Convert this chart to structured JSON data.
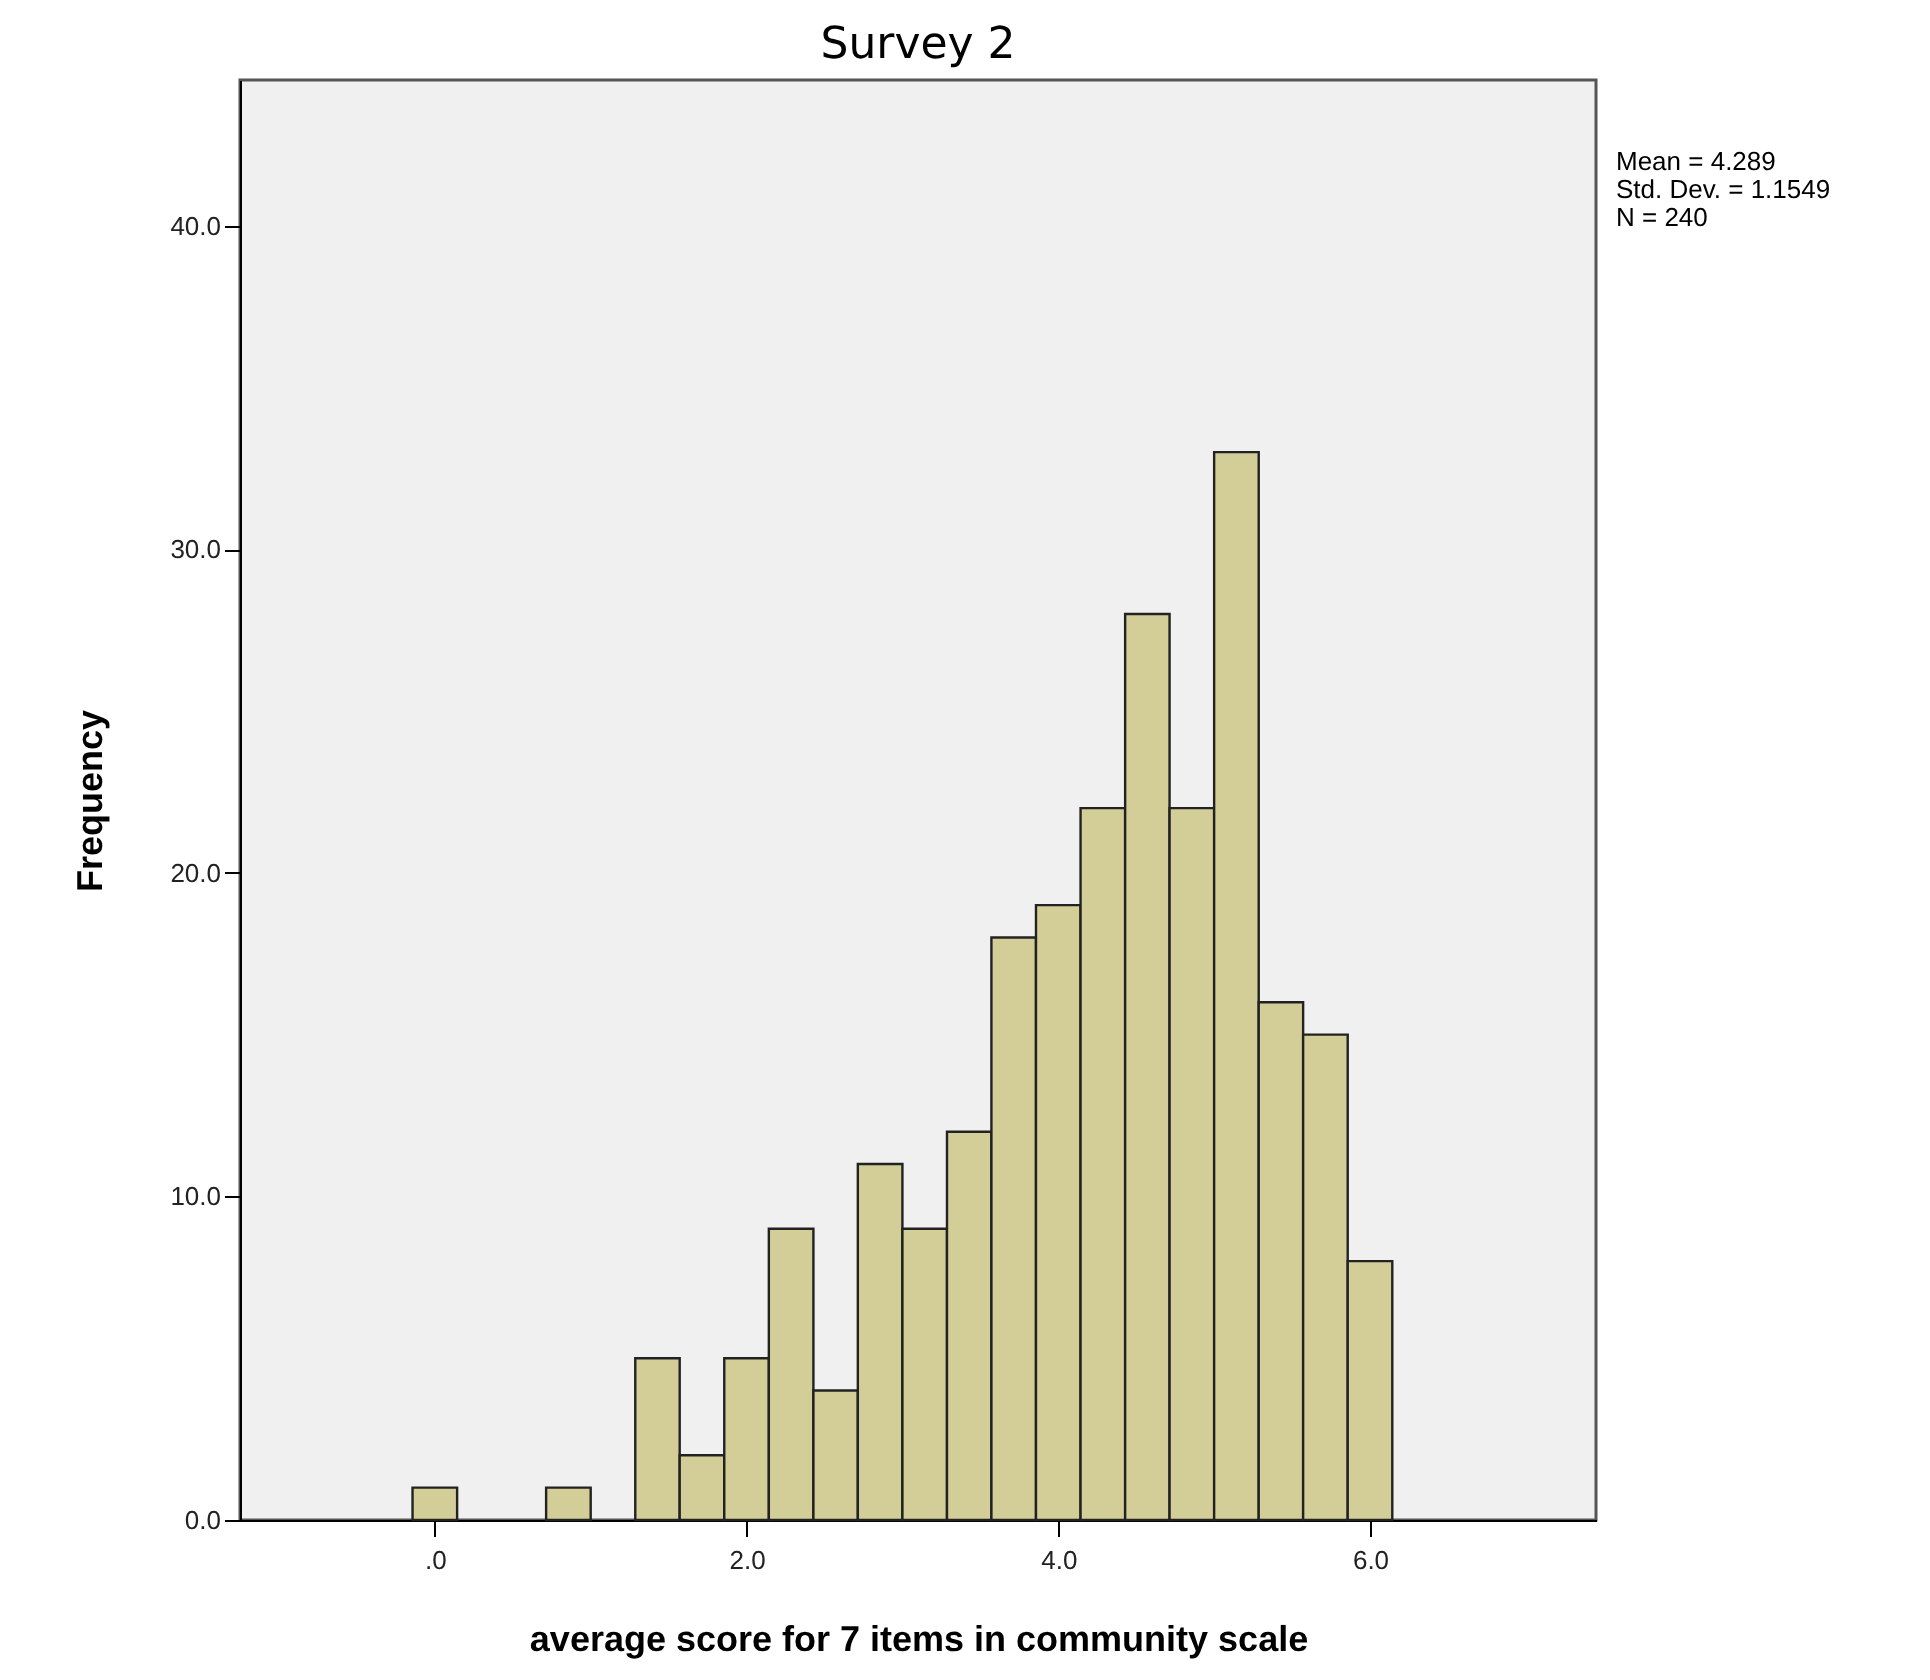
{
  "chart_data": {
    "type": "histogram",
    "title": "Survey 2",
    "xlabel": "average score for 7 items in community scale",
    "ylabel": "Frequency",
    "bins": [
      -0.143,
      0.143,
      0.429,
      0.714,
      1.0,
      1.286,
      1.571,
      1.857,
      2.143,
      2.429,
      2.714,
      3.0,
      3.286,
      3.571,
      3.857,
      4.143,
      4.429,
      4.714,
      5.0,
      5.286,
      5.571,
      5.857,
      6.143
    ],
    "values": [
      1,
      0,
      0,
      1,
      0,
      5,
      2,
      5,
      9,
      4,
      11,
      9,
      12,
      18,
      19,
      22,
      28,
      22,
      33,
      16,
      15,
      8
    ],
    "color": "#d3ce97",
    "xlim": [
      -1.25,
      7.45
    ],
    "ylim": [
      0,
      44.5
    ],
    "xticks": [
      {
        "value": 0,
        "label": ".0"
      },
      {
        "value": 2,
        "label": "2.0"
      },
      {
        "value": 4,
        "label": "4.0"
      },
      {
        "value": 6,
        "label": "6.0"
      }
    ],
    "yticks": [
      {
        "value": 0,
        "label": "0.0"
      },
      {
        "value": 10,
        "label": "10.0"
      },
      {
        "value": 20,
        "label": "20.0"
      },
      {
        "value": 30,
        "label": "30.0"
      },
      {
        "value": 40,
        "label": "40.0"
      }
    ],
    "annotations": [
      "Mean = 4.289",
      "Std. Dev. = 1.1549",
      "N = 240"
    ],
    "grid": false
  }
}
